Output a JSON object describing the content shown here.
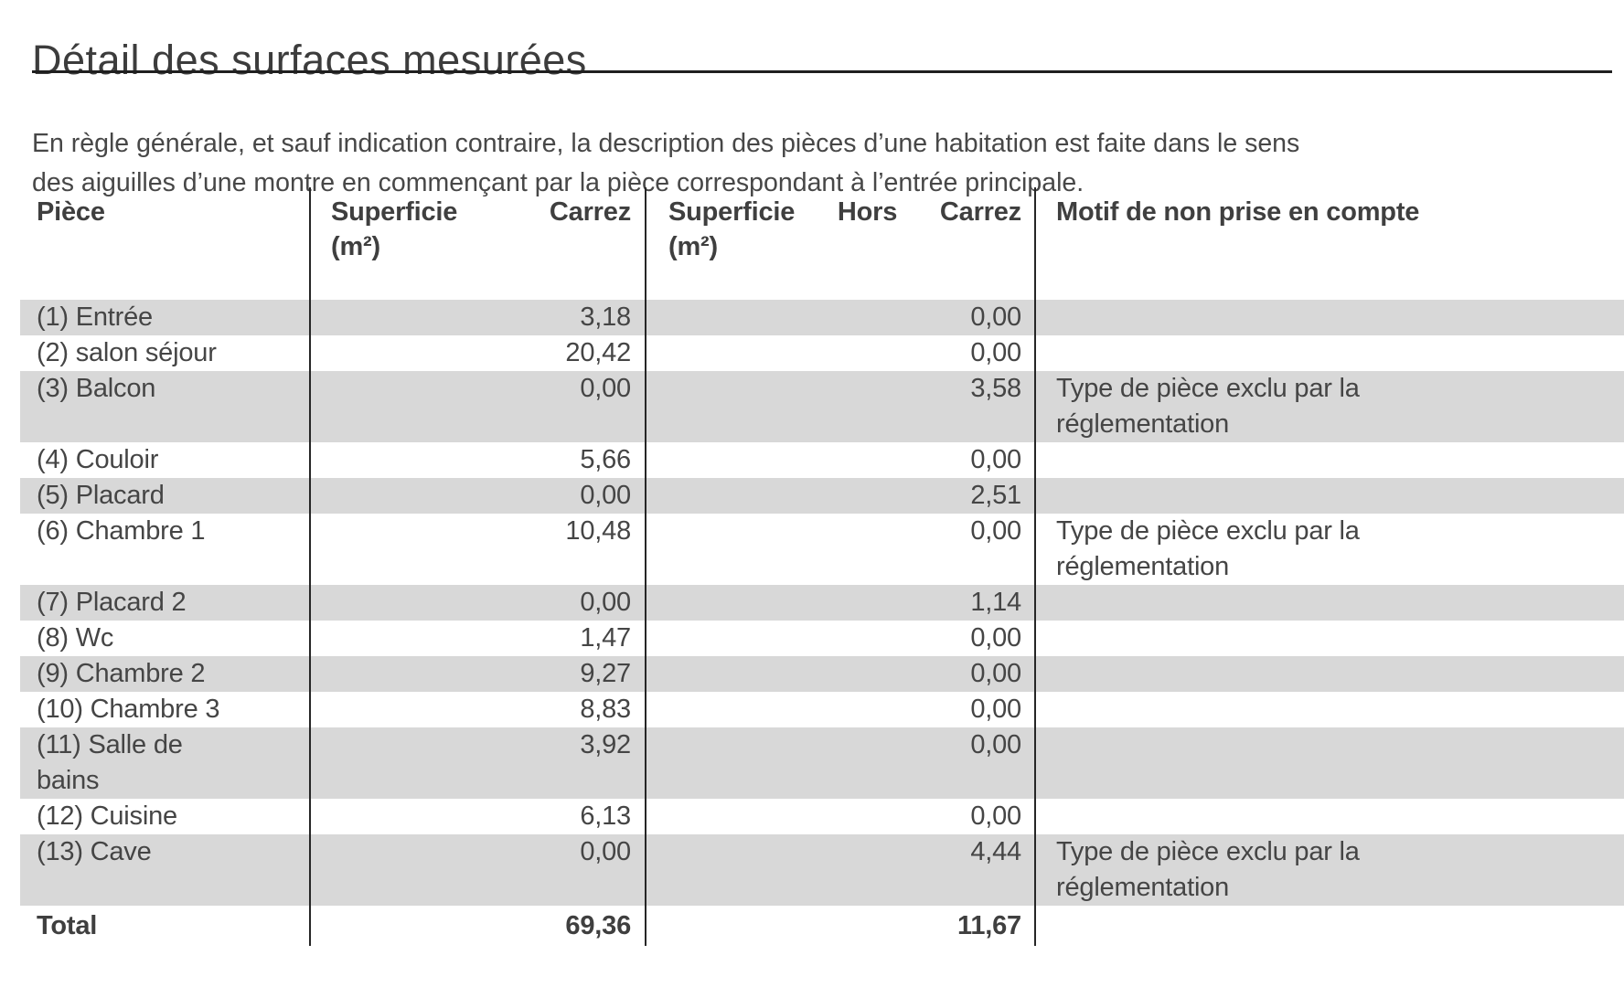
{
  "document": {
    "title": "Détail des surfaces mesurées",
    "intro": "En règle générale, et sauf indication contraire, la description des pièces d’une habitation est faite dans le sens\ndes aiguilles d’une montre en commençant par la pièce correspondant à l’entrée principale."
  },
  "colors": {
    "text": "#454545",
    "row_shade": "#d8d8d8",
    "rule": "#262626"
  },
  "table": {
    "headers": {
      "piece": "Pièce",
      "superficie_carrez": {
        "word1": "Superficie",
        "word2": "Carrez",
        "unit": "(m²)"
      },
      "superficie_hors_carrez": {
        "word1": "Superficie",
        "word2": "Hors",
        "word3": "Carrez",
        "unit": "(m²)"
      },
      "motif": "Motif de non prise en compte"
    },
    "rows": [
      {
        "piece": "(1) Entrée",
        "carrez": "3,18",
        "hors_carrez": "0,00",
        "motif": ""
      },
      {
        "piece": "(2) salon séjour",
        "carrez": "20,42",
        "hors_carrez": "0,00",
        "motif": ""
      },
      {
        "piece": "(3) Balcon",
        "carrez": "0,00",
        "hors_carrez": "3,58",
        "motif": "Type de pièce exclu par la\nréglementation"
      },
      {
        "piece": "(4) Couloir",
        "carrez": "5,66",
        "hors_carrez": "0,00",
        "motif": ""
      },
      {
        "piece": "(5) Placard",
        "carrez": "0,00",
        "hors_carrez": "2,51",
        "motif": ""
      },
      {
        "piece": "(6) Chambre 1",
        "carrez": "10,48",
        "hors_carrez": "0,00",
        "motif": "Type de pièce exclu par la\nréglementation"
      },
      {
        "piece": "(7) Placard 2",
        "carrez": "0,00",
        "hors_carrez": "1,14",
        "motif": ""
      },
      {
        "piece": "(8) Wc",
        "carrez": "1,47",
        "hors_carrez": "0,00",
        "motif": ""
      },
      {
        "piece": "(9) Chambre 2",
        "carrez": "9,27",
        "hors_carrez": "0,00",
        "motif": ""
      },
      {
        "piece": "(10) Chambre 3",
        "carrez": "8,83",
        "hors_carrez": "0,00",
        "motif": ""
      },
      {
        "piece": "(11) Salle de\nbains",
        "carrez": "3,92",
        "hors_carrez": "0,00",
        "motif": ""
      },
      {
        "piece": "(12) Cuisine",
        "carrez": "6,13",
        "hors_carrez": "0,00",
        "motif": ""
      },
      {
        "piece": "(13) Cave",
        "carrez": "0,00",
        "hors_carrez": "4,44",
        "motif": "Type de pièce exclu par la\nréglementation"
      }
    ],
    "total": {
      "label": "Total",
      "carrez": "69,36",
      "hors_carrez": "11,67",
      "motif": ""
    }
  }
}
